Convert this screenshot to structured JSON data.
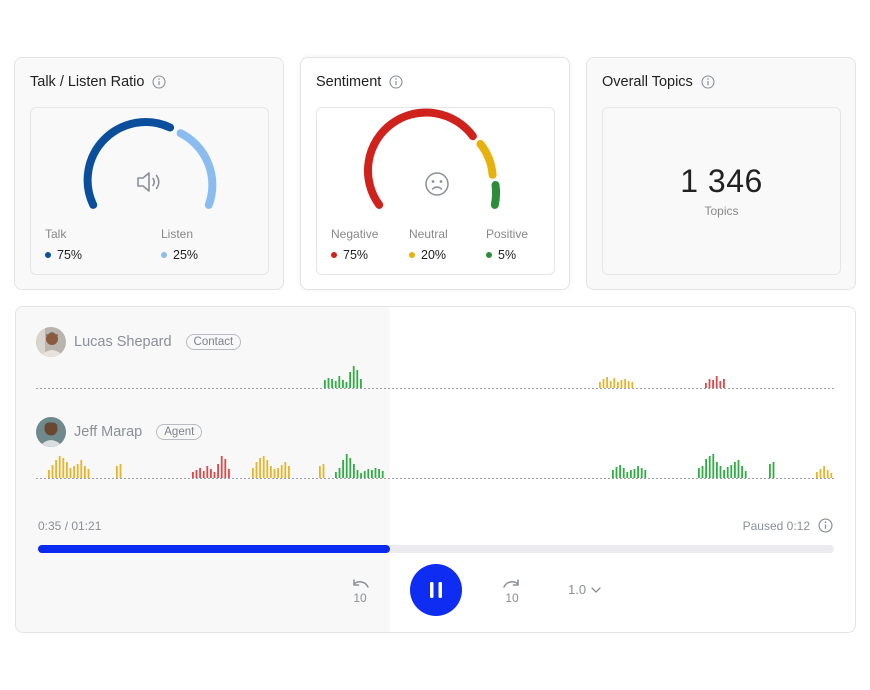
{
  "talk_listen": {
    "title": "Talk / Listen Ratio",
    "talk_label": "Talk",
    "talk_value": "75%",
    "talk_fraction": 0.75,
    "listen_label": "Listen",
    "listen_value": "25%",
    "listen_fraction": 0.25,
    "talk_color": "#0b4f9c",
    "listen_color": "#8bbcf0",
    "center_icon": "speaker-volume-icon"
  },
  "sentiment": {
    "title": "Sentiment",
    "negative_label": "Negative",
    "negative_value": "75%",
    "negative_fraction": 0.75,
    "neutral_label": "Neutral",
    "neutral_value": "20%",
    "neutral_fraction": 0.2,
    "positive_label": "Positive",
    "positive_value": "5%",
    "positive_fraction": 0.05,
    "negative_color": "#d0221c",
    "neutral_color": "#e8b20e",
    "positive_color": "#2e8b3a",
    "center_icon": "sad-face-icon"
  },
  "topics": {
    "title": "Overall Topics",
    "count": "1 346",
    "label": "Topics"
  },
  "player": {
    "speakers": [
      {
        "name": "Lucas Shepard",
        "role": "Contact"
      },
      {
        "name": "Jeff Marap",
        "role": "Agent"
      }
    ],
    "current_time": "0:35 / 01:21",
    "paused_text": "Paused 0:12",
    "progress_fraction": 0.442,
    "speed": "1.0",
    "rewind_label": "10",
    "forward_label": "10",
    "accent_color": "#0f2cf2"
  }
}
